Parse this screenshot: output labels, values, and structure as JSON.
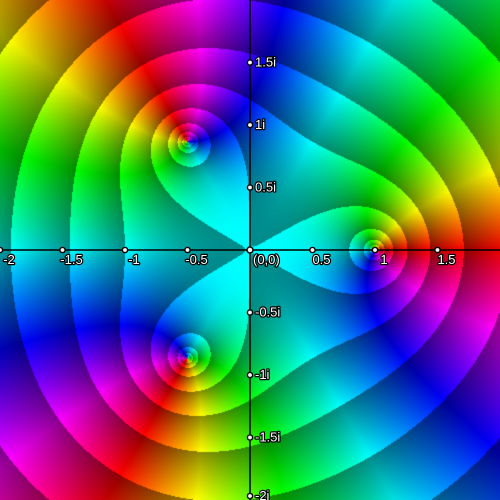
{
  "plot": {
    "kind": "domain-coloring",
    "domain": {
      "re": [
        -2,
        2
      ],
      "im": [
        -2,
        2
      ]
    },
    "zeros": [
      {
        "re": 1,
        "im": 0
      },
      {
        "re": -0.5,
        "im": 0.866
      },
      {
        "re": -0.5,
        "im": -0.866
      }
    ],
    "axis_color": "#000000",
    "tick_fill": "#ffffff",
    "tick_stroke": "#000000"
  },
  "axes": {
    "x_ticks": [
      {
        "value": -2,
        "label": "-2"
      },
      {
        "value": -1.5,
        "label": "-1.5"
      },
      {
        "value": -1,
        "label": "-1"
      },
      {
        "value": -0.5,
        "label": "-0.5"
      },
      {
        "value": 0.5,
        "label": "0.5"
      },
      {
        "value": 1,
        "label": "1"
      },
      {
        "value": 1.5,
        "label": "1.5"
      }
    ],
    "y_ticks": [
      {
        "value": 1.5,
        "label": "1.5i"
      },
      {
        "value": 1,
        "label": "1i"
      },
      {
        "value": 0.5,
        "label": "0.5i"
      },
      {
        "value": -0.5,
        "label": "-0.5i"
      },
      {
        "value": -1,
        "label": "-1i"
      },
      {
        "value": -1.5,
        "label": "-1.5i"
      },
      {
        "value": -2,
        "label": "-2i"
      }
    ],
    "origin_label": "(0,0)"
  }
}
